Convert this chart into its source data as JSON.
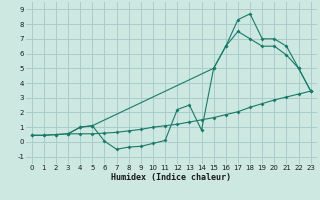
{
  "bg_color": "#cce8e0",
  "grid_color": "#aacccc",
  "line_color": "#1a7a6a",
  "xlabel": "Humidex (Indice chaleur)",
  "xlim": [
    -0.5,
    23.5
  ],
  "ylim": [
    -1.5,
    9.5
  ],
  "xticks": [
    0,
    1,
    2,
    3,
    4,
    5,
    6,
    7,
    8,
    9,
    10,
    11,
    12,
    13,
    14,
    15,
    16,
    17,
    18,
    19,
    20,
    21,
    22,
    23
  ],
  "yticks": [
    -1,
    0,
    1,
    2,
    3,
    4,
    5,
    6,
    7,
    8,
    9
  ],
  "line1_x": [
    0,
    1,
    2,
    3,
    4,
    5,
    6,
    7,
    8,
    9,
    10,
    11,
    12,
    13,
    14,
    15,
    16,
    17,
    18,
    19,
    20,
    21,
    22,
    23
  ],
  "line1_y": [
    0.45,
    0.45,
    0.5,
    0.55,
    0.55,
    0.55,
    0.6,
    0.65,
    0.75,
    0.85,
    1.0,
    1.1,
    1.2,
    1.35,
    1.5,
    1.65,
    1.85,
    2.05,
    2.35,
    2.6,
    2.85,
    3.05,
    3.25,
    3.45
  ],
  "line2_x": [
    0,
    1,
    2,
    3,
    4,
    5,
    6,
    7,
    8,
    9,
    10,
    11,
    12,
    13,
    14,
    15,
    16,
    17,
    18,
    19,
    20,
    21,
    22,
    23
  ],
  "line2_y": [
    0.45,
    0.45,
    0.5,
    0.55,
    1.0,
    1.1,
    0.05,
    -0.5,
    -0.35,
    -0.3,
    -0.1,
    0.1,
    2.2,
    2.5,
    0.8,
    5.0,
    6.5,
    8.3,
    8.7,
    7.0,
    7.0,
    6.5,
    5.0,
    3.45
  ],
  "line3_x": [
    3,
    4,
    5,
    15,
    16,
    17,
    18,
    19,
    20,
    21,
    22,
    23
  ],
  "line3_y": [
    0.55,
    1.0,
    1.1,
    5.0,
    6.5,
    7.5,
    7.0,
    6.5,
    6.5,
    5.9,
    5.0,
    3.45
  ]
}
